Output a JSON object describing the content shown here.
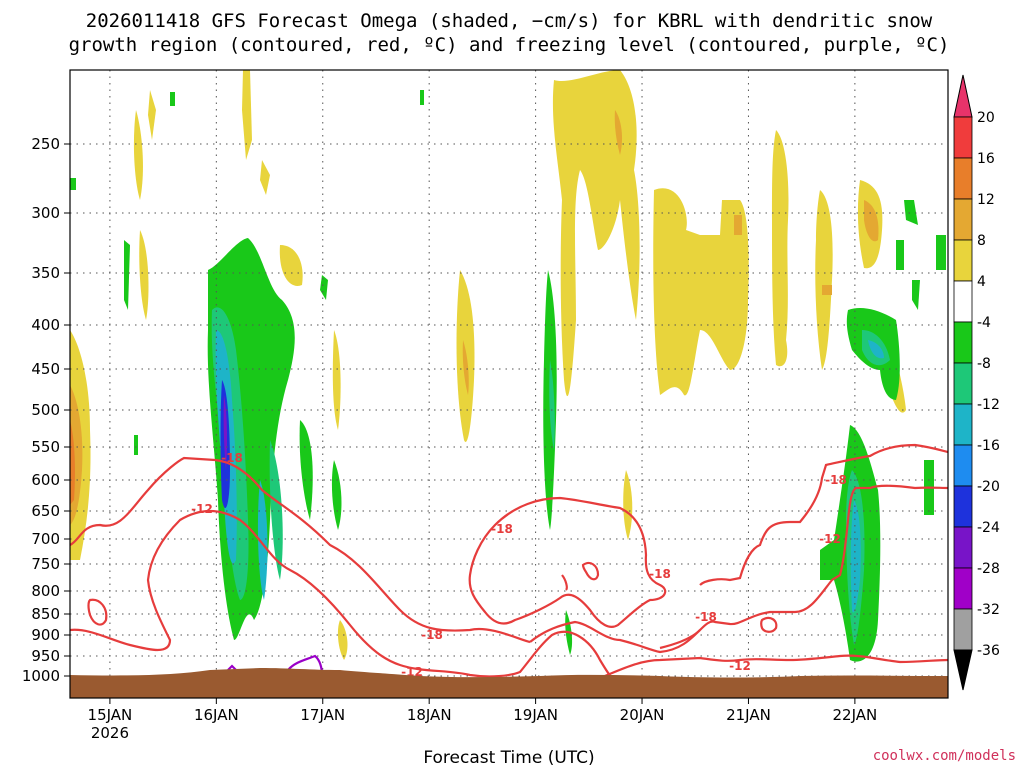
{
  "title_line1": "2026011418 GFS Forecast Omega (shaded, −cm/s) for KBRL with dendritic snow",
  "title_line2": "growth region (contoured, red, ºC) and freezing level (contoured, purple, ºC)",
  "credit": "coolwx.com/models",
  "chart_data": {
    "type": "heatmap",
    "title": "2026011418 GFS Forecast Omega (shaded, −cm/s) for KBRL with dendritic snow growth region (contoured, red, ºC) and freezing level (contoured, purple, ºC)",
    "xlabel": "Forecast Time (UTC)",
    "ylabel": "",
    "x_axis_unit": "hours from 2026-01-14 18Z",
    "xlim": [
      -3,
      195
    ],
    "x_ticks": [
      {
        "hour": 6,
        "label": "15JAN",
        "sublabel": "2026"
      },
      {
        "hour": 30,
        "label": "16JAN"
      },
      {
        "hour": 54,
        "label": "17JAN"
      },
      {
        "hour": 78,
        "label": "18JAN"
      },
      {
        "hour": 102,
        "label": "19JAN"
      },
      {
        "hour": 126,
        "label": "20JAN"
      },
      {
        "hour": 150,
        "label": "21JAN"
      },
      {
        "hour": 174,
        "label": "22JAN"
      }
    ],
    "y_axis_unit": "hPa",
    "ylim": [
      1020,
      200
    ],
    "y_ticks": [
      1000,
      950,
      900,
      850,
      800,
      750,
      700,
      650,
      600,
      550,
      500,
      450,
      400,
      350,
      300,
      250
    ],
    "colorbar": {
      "unit": "-cm/s",
      "ticks": [
        20,
        16,
        12,
        8,
        4,
        -4,
        -8,
        -12,
        -16,
        -20,
        -24,
        -28,
        -32,
        -36
      ],
      "colors": [
        "#e8336a",
        "#f03c3c",
        "#e87e2a",
        "#e4a832",
        "#e8d43c",
        "#ffffff",
        "#19c819",
        "#1ec878",
        "#1eb4c8",
        "#1e8cf0",
        "#1e32dc",
        "#7814c8",
        "#a000c8",
        "#a0a0a0",
        "#000000"
      ]
    },
    "contour_labels": {
      "dgz": [
        "-18",
        "-12",
        "-18",
        "-18",
        "-12",
        "-18",
        "-18",
        "-12",
        "-18",
        "-12"
      ]
    },
    "series": [
      {
        "name": "dgz_-12C_isotherm",
        "color": "#e63c3c"
      },
      {
        "name": "dgz_-18C_isotherm",
        "color": "#e63c3c"
      },
      {
        "name": "freezing_level",
        "color": "#9a00c8"
      }
    ],
    "ground_color": "#9a5a30"
  }
}
